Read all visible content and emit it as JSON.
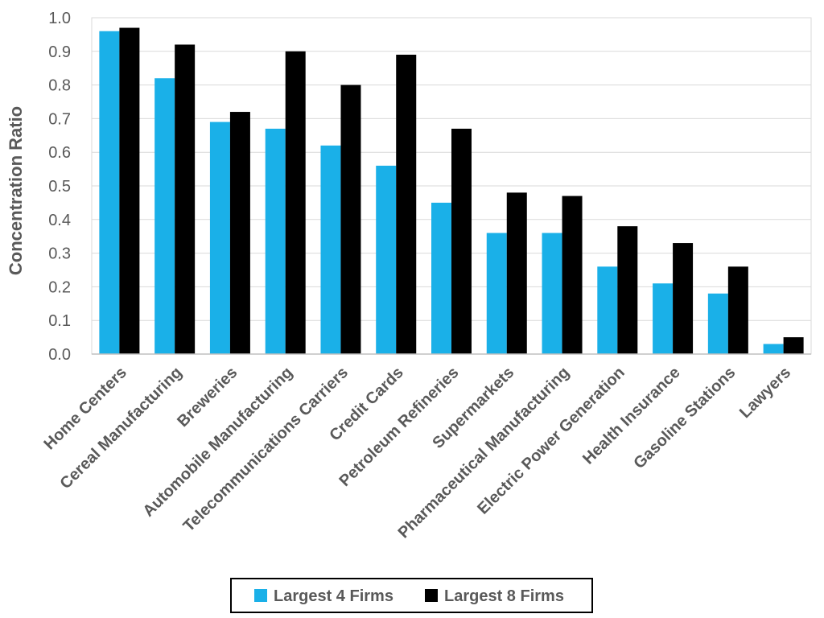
{
  "chart_data": {
    "type": "bar",
    "ylabel": "Concentration Ratio",
    "xlabel": "",
    "ylim": [
      0,
      1.0
    ],
    "yticks": [
      "0.0",
      "0.1",
      "0.2",
      "0.3",
      "0.4",
      "0.5",
      "0.6",
      "0.7",
      "0.8",
      "0.9",
      "1.0"
    ],
    "grid": "horizontal",
    "legend_position": "bottom",
    "categories": [
      "Home Centers",
      "Cereal Manufacturing",
      "Breweries",
      "Automobile Manufacturing",
      "Telecommunications Carriers",
      "Credit Cards",
      "Petroleum Refineries",
      "Supermarkets",
      "Pharmaceutical Manufacturing",
      "Electric Power Generation",
      "Health Insurance",
      "Gasoline Stations",
      "Lawyers"
    ],
    "series": [
      {
        "name": "Largest 4 Firms",
        "color": "#1ab0e8",
        "values": [
          0.96,
          0.82,
          0.69,
          0.67,
          0.62,
          0.56,
          0.45,
          0.36,
          0.36,
          0.26,
          0.21,
          0.18,
          0.03
        ]
      },
      {
        "name": "Largest 8 Firms",
        "color": "#000000",
        "values": [
          0.97,
          0.92,
          0.72,
          0.9,
          0.8,
          0.89,
          0.67,
          0.48,
          0.47,
          0.38,
          0.33,
          0.26,
          0.05
        ]
      }
    ]
  }
}
